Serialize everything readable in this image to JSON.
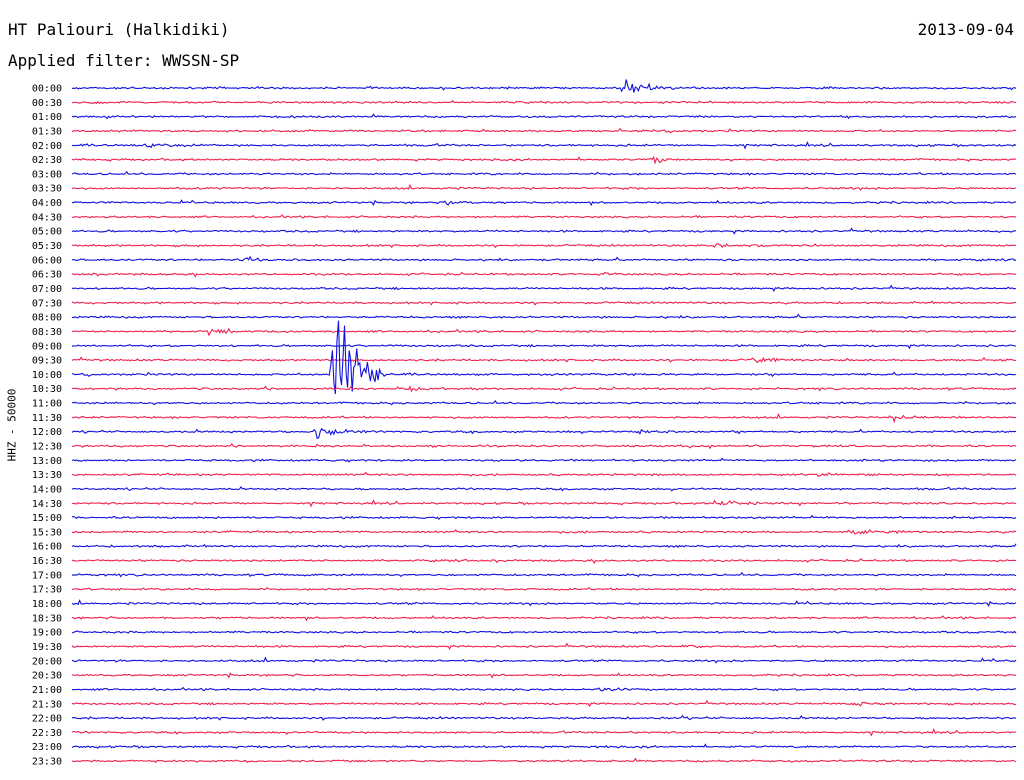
{
  "header": {
    "station": "HT Paliouri (Halkidiki)",
    "date": "2013-09-04",
    "filter": "Applied filter: WWSSN-SP"
  },
  "channel_label": "HHZ - 50000",
  "colors": {
    "trace_a": "#1010e0",
    "trace_b": "#f0204f"
  },
  "chart_data": {
    "type": "line",
    "rows": [
      "00:00",
      "00:30",
      "01:00",
      "01:30",
      "02:00",
      "02:30",
      "03:00",
      "03:30",
      "04:00",
      "04:30",
      "05:00",
      "05:30",
      "06:00",
      "06:30",
      "07:00",
      "07:30",
      "08:00",
      "08:30",
      "09:00",
      "09:30",
      "10:00",
      "10:30",
      "11:00",
      "11:30",
      "12:00",
      "12:30",
      "13:00",
      "13:30",
      "14:00",
      "14:30",
      "15:00",
      "15:30",
      "16:00",
      "16:30",
      "17:00",
      "17:30",
      "18:00",
      "18:30",
      "19:00",
      "19:30",
      "20:00",
      "20:30",
      "21:00",
      "21:30",
      "22:00",
      "22:30",
      "23:00",
      "23:30"
    ],
    "events": [
      {
        "row": "00:00",
        "x": 0.585,
        "amp": 2.2,
        "w": 0.025,
        "color": "a"
      },
      {
        "row": "00:30",
        "x": 0.015,
        "amp": 0.6,
        "w": 0.01,
        "color": "b"
      },
      {
        "row": "02:00",
        "x": 0.075,
        "amp": 0.8,
        "w": 0.03,
        "color": "a"
      },
      {
        "row": "02:30",
        "x": 0.615,
        "amp": 1.1,
        "w": 0.015,
        "color": "b"
      },
      {
        "row": "04:00",
        "x": 0.395,
        "amp": 0.9,
        "w": 0.02,
        "color": "a"
      },
      {
        "row": "05:30",
        "x": 0.68,
        "amp": 0.6,
        "w": 0.04,
        "color": "b"
      },
      {
        "row": "06:00",
        "x": 0.175,
        "amp": 0.7,
        "w": 0.025,
        "color": "a"
      },
      {
        "row": "06:30",
        "x": 0.565,
        "amp": 0.9,
        "w": 0.008,
        "color": "b"
      },
      {
        "row": "08:30",
        "x": 0.145,
        "amp": 0.9,
        "w": 0.03,
        "color": "b"
      },
      {
        "row": "09:30",
        "x": 0.72,
        "amp": 0.8,
        "w": 0.03,
        "color": "b"
      },
      {
        "row": "10:00",
        "x": 0.278,
        "amp": 24.0,
        "w": 0.018,
        "color": "a"
      },
      {
        "row": "10:30",
        "x": 0.355,
        "amp": 0.8,
        "w": 0.025,
        "color": "b"
      },
      {
        "row": "11:30",
        "x": 0.87,
        "amp": 0.8,
        "w": 0.03,
        "color": "b"
      },
      {
        "row": "12:00",
        "x": 0.258,
        "amp": 2.2,
        "w": 0.02,
        "color": "a"
      },
      {
        "row": "12:00",
        "x": 0.6,
        "amp": 0.8,
        "w": 0.03,
        "color": "a"
      },
      {
        "row": "13:30",
        "x": 0.79,
        "amp": 0.7,
        "w": 0.02,
        "color": "b"
      },
      {
        "row": "14:30",
        "x": 0.68,
        "amp": 1.0,
        "w": 0.03,
        "color": "b"
      },
      {
        "row": "15:30",
        "x": 0.82,
        "amp": 1.0,
        "w": 0.03,
        "color": "b"
      },
      {
        "row": "19:30",
        "x": 0.65,
        "amp": 0.8,
        "w": 0.006,
        "color": "b"
      },
      {
        "row": "21:00",
        "x": 0.56,
        "amp": 0.7,
        "w": 0.02,
        "color": "a"
      },
      {
        "row": "21:30",
        "x": 0.83,
        "amp": 1.1,
        "w": 0.012,
        "color": "b"
      },
      {
        "row": "22:00",
        "x": 0.62,
        "amp": 0.7,
        "w": 0.01,
        "color": "a"
      }
    ]
  }
}
